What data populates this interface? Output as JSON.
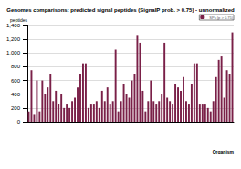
{
  "chart_data": {
    "type": "bar",
    "title": "Genomes comparisons: predicted signal peptides (SignalP prob. > 0.75) - unnormalized",
    "y_label": "peptides",
    "x_label": "Organism",
    "categories": [
      null,
      null,
      null,
      null,
      null,
      null,
      null,
      null,
      null,
      null,
      null,
      null,
      null,
      null,
      null,
      null,
      null,
      null,
      null,
      null,
      null,
      null,
      null,
      null,
      null,
      null,
      null,
      null,
      null,
      null,
      null,
      null,
      null,
      null,
      null,
      null,
      null,
      null,
      null,
      null,
      null,
      null,
      null,
      null,
      null,
      null,
      null,
      null,
      null,
      null,
      null,
      null,
      null,
      null,
      null,
      null,
      null,
      null,
      null,
      null,
      null,
      null,
      null,
      null,
      null,
      null,
      null,
      null,
      null,
      null,
      null,
      null,
      null,
      null,
      null,
      null
    ],
    "series": [
      {
        "name": "SPs (p > 0.75)",
        "color": "#7a2048",
        "values": [
          150,
          750,
          100,
          600,
          150,
          600,
          400,
          500,
          700,
          300,
          450,
          250,
          400,
          200,
          250,
          200,
          300,
          350,
          500,
          700,
          850,
          850,
          200,
          250,
          250,
          300,
          200,
          450,
          300,
          500,
          250,
          300,
          1050,
          150,
          300,
          550,
          400,
          350,
          600,
          700,
          1250,
          1150,
          450,
          150,
          300,
          600,
          300,
          250,
          300,
          400,
          1150,
          350,
          300,
          250,
          550,
          500,
          450,
          650,
          300,
          250,
          550,
          850,
          850,
          250,
          250,
          250,
          200,
          150,
          300,
          650,
          900,
          950,
          350,
          750,
          700,
          1300
        ]
      }
    ],
    "ylim": [
      0,
      1400
    ],
    "yticks": [
      0,
      200,
      400,
      600,
      800,
      1000,
      1200,
      1400
    ],
    "grid": true,
    "legend": "upper right"
  }
}
